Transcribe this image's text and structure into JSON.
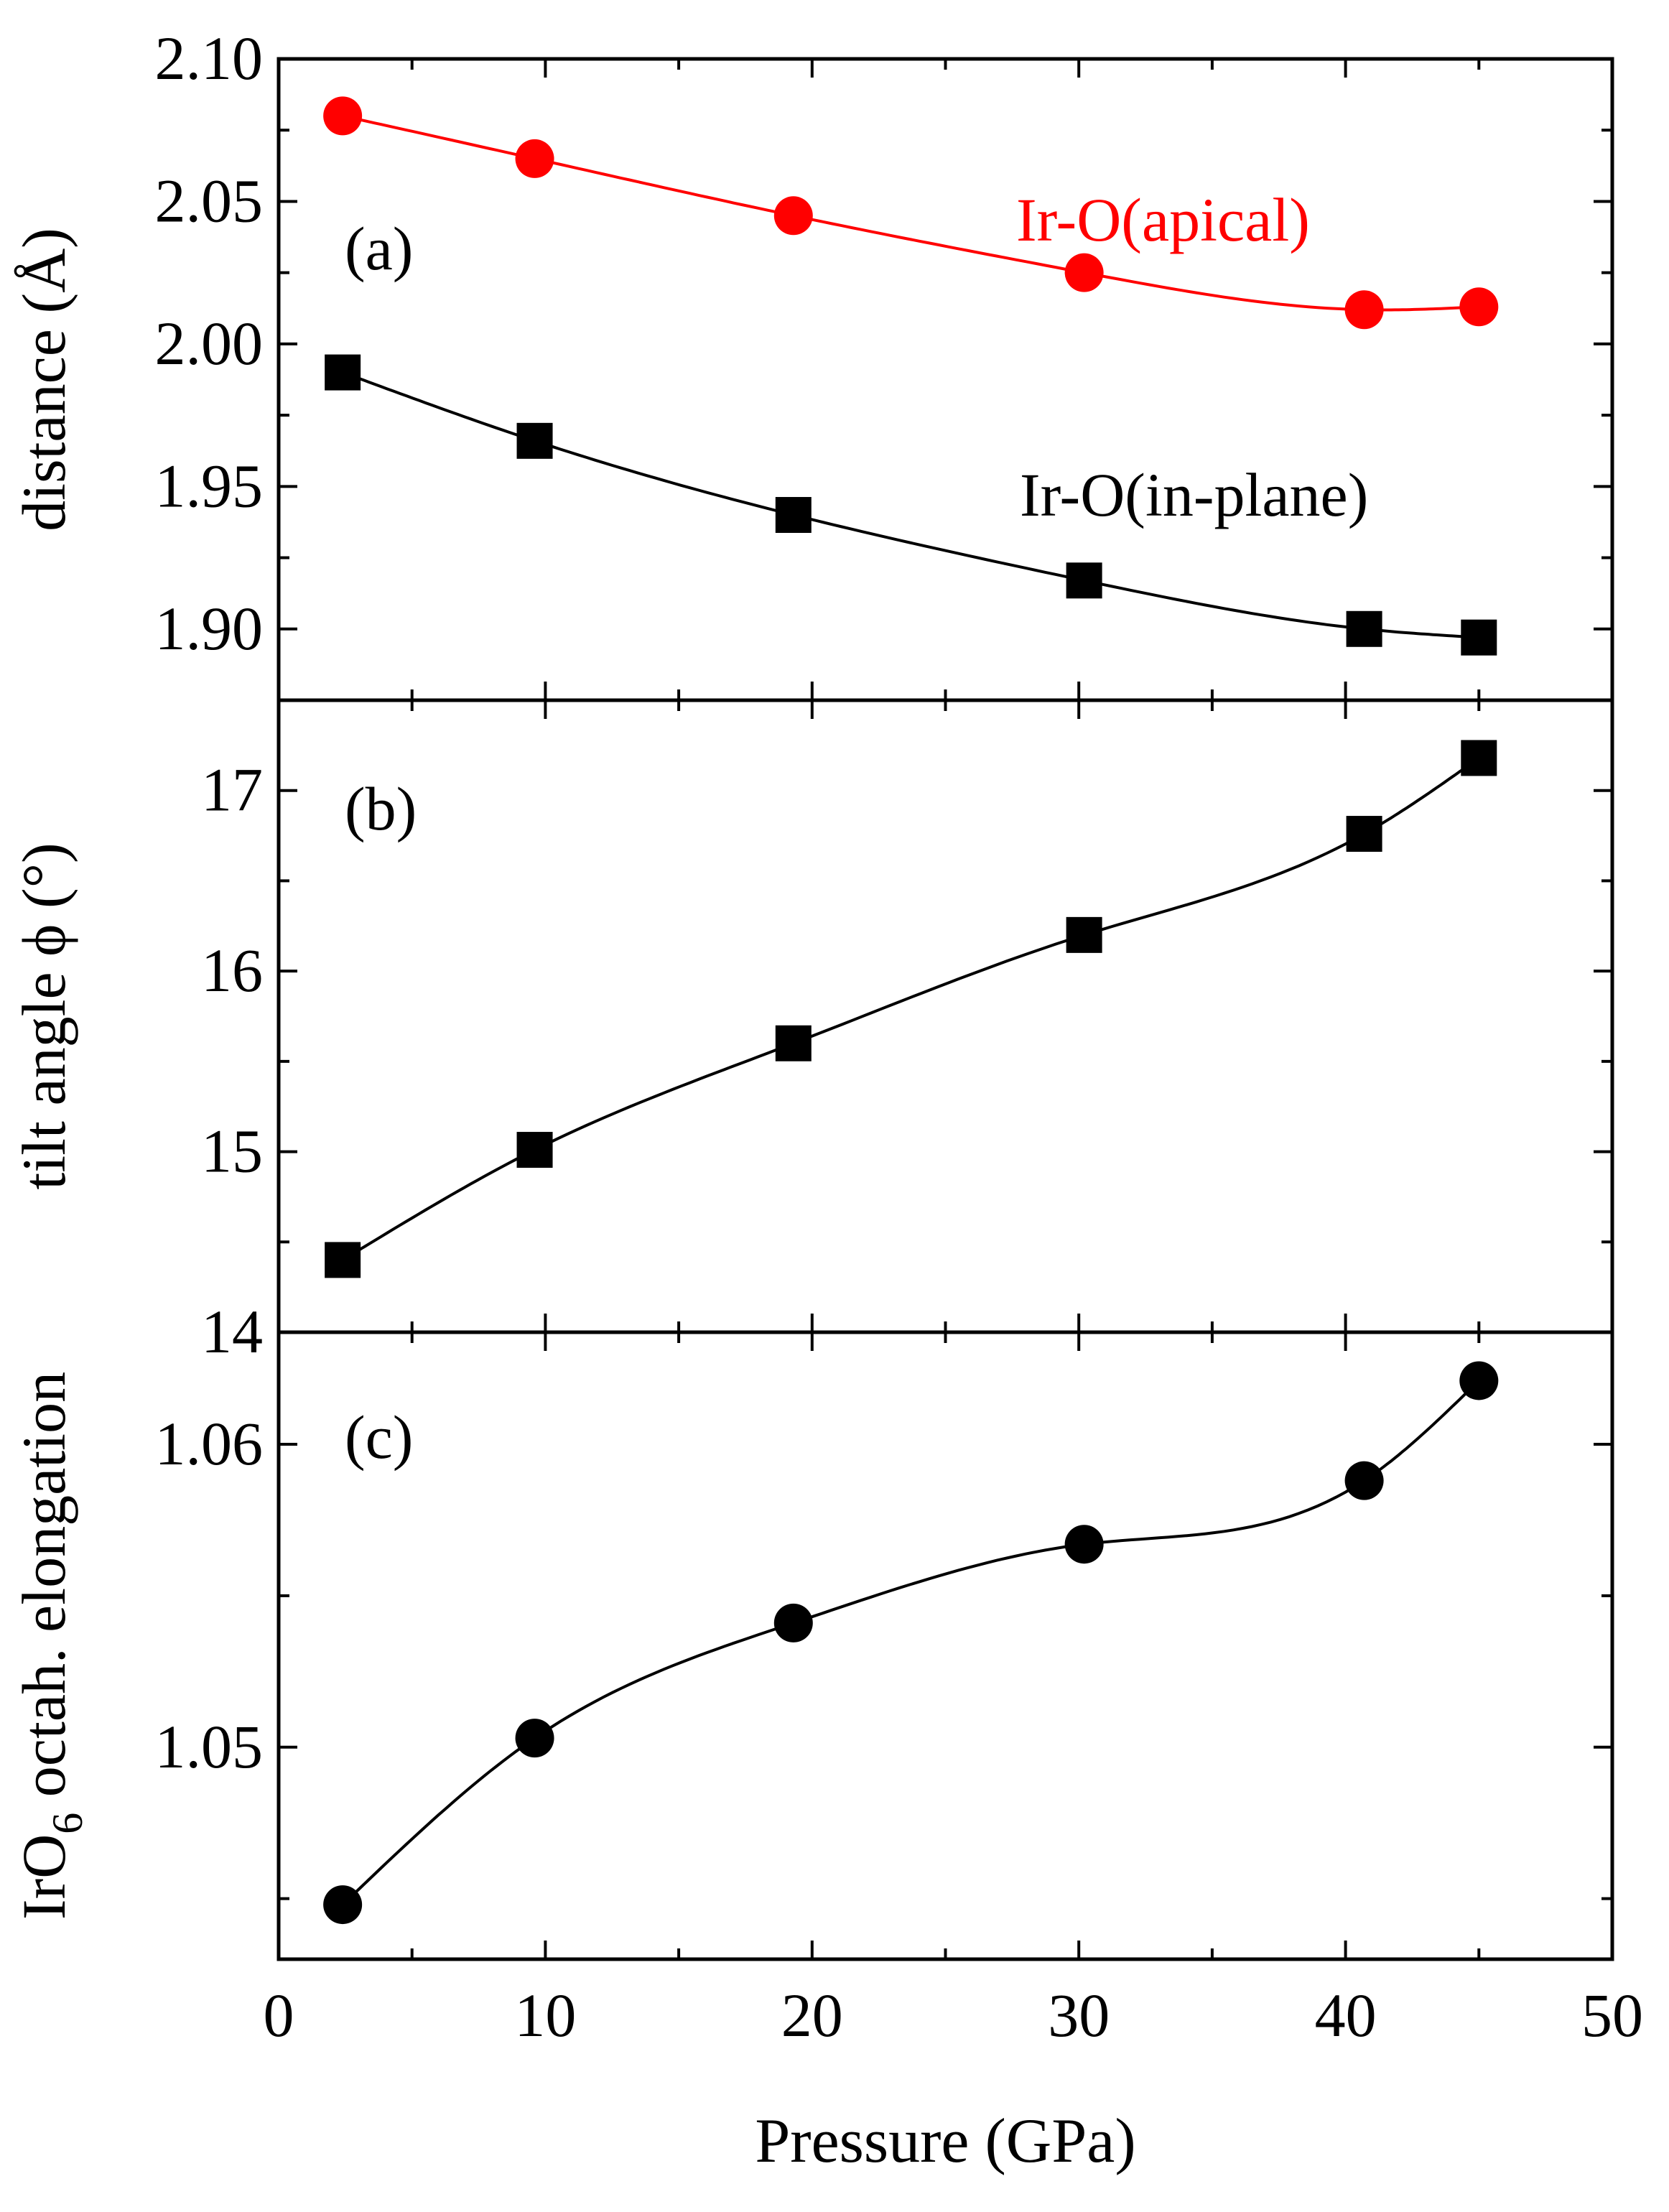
{
  "colors": {
    "axis": "#000000",
    "apical": "#ff0000",
    "inplane": "#000000"
  },
  "chart_data": [
    {
      "id": "a",
      "type": "line",
      "panel_label": "(a)",
      "ylabel": "distance (Å)",
      "xlim": [
        0,
        50
      ],
      "ylim": [
        1.875,
        2.1
      ],
      "yticks": [
        1.9,
        1.95,
        2.0,
        2.05,
        2.1
      ],
      "ytick_labels": [
        "1.90",
        "1.95",
        "2.00",
        "2.05",
        "2.10"
      ],
      "series": [
        {
          "name": "Ir-O(apical)",
          "label": "Ir-O(apical)",
          "color": "#ff0000",
          "marker": "circle",
          "x": [
            2.4,
            9.6,
            19.3,
            30.2,
            40.7,
            45.0
          ],
          "y": [
            2.08,
            2.065,
            2.045,
            2.025,
            2.012,
            2.013
          ]
        },
        {
          "name": "Ir-O(in-plane)",
          "label": "Ir-O(in-plane)",
          "color": "#000000",
          "marker": "square",
          "x": [
            2.4,
            9.6,
            19.3,
            30.2,
            40.7,
            45.0
          ],
          "y": [
            1.99,
            1.966,
            1.94,
            1.917,
            1.9,
            1.897
          ]
        }
      ]
    },
    {
      "id": "b",
      "type": "line",
      "panel_label": "(b)",
      "ylabel": "tilt angle ϕ (°)",
      "xlim": [
        0,
        50
      ],
      "ylim": [
        14,
        17.5
      ],
      "yticks": [
        15,
        16,
        17
      ],
      "ytick_labels": [
        "15",
        "16",
        "17"
      ],
      "series": [
        {
          "name": "tilt angle",
          "color": "#000000",
          "marker": "square",
          "x": [
            2.4,
            9.6,
            19.3,
            30.2,
            40.7,
            45.0
          ],
          "y": [
            14.4,
            15.01,
            15.6,
            16.2,
            16.76,
            17.18
          ]
        }
      ]
    },
    {
      "id": "c",
      "type": "line",
      "panel_label": "(c)",
      "ylabel_main": "IrO",
      "ylabel_sub": "6",
      "ylabel_rest": " octah. elongation",
      "xlabel": "Pressure (GPa)",
      "xlim": [
        0,
        50
      ],
      "ylim": [
        1.043,
        1.0637
      ],
      "yticks": [
        1.05,
        1.06
      ],
      "ytick_labels": [
        "1.05",
        "1.06"
      ],
      "boundary_label": "14",
      "xticks": [
        0,
        10,
        20,
        30,
        40,
        50
      ],
      "xtick_labels": [
        "0",
        "10",
        "20",
        "30",
        "40",
        "50"
      ],
      "series": [
        {
          "name": "octahedral elongation",
          "color": "#000000",
          "marker": "circle",
          "x": [
            2.4,
            9.6,
            19.3,
            30.2,
            40.7,
            45.0
          ],
          "y": [
            1.0448,
            1.0503,
            1.0541,
            1.0567,
            1.0588,
            1.0621
          ]
        }
      ]
    }
  ]
}
